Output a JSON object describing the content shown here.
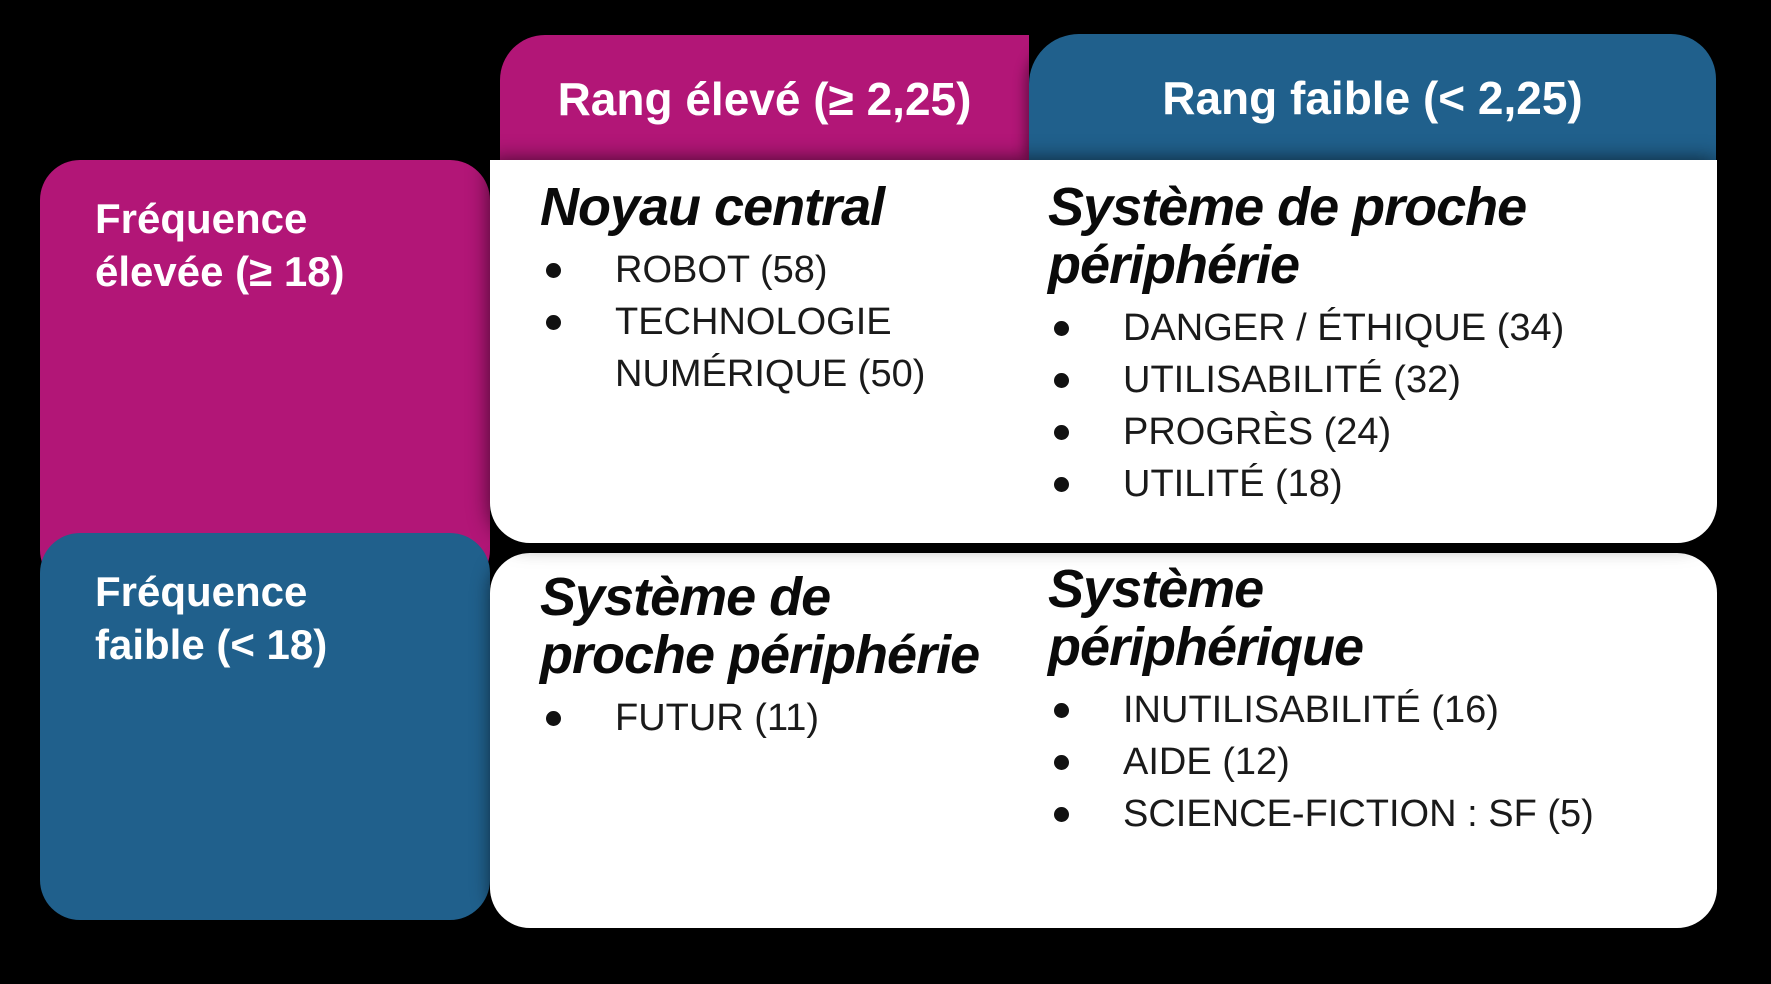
{
  "colors": {
    "magenta": "#B21677",
    "blue": "#20608C",
    "background": "#000000",
    "panel": "#FFFFFF",
    "header_text": "#FFFFFF",
    "body_text": "#1A1A1A"
  },
  "column_headers": [
    {
      "label": "Rang élevé (≥ 2,25)"
    },
    {
      "label": "Rang faible (< 2,25)"
    }
  ],
  "row_headers": [
    {
      "line1": "Fréquence",
      "line2": "élevée (≥ 18)"
    },
    {
      "line1": "Fréquence",
      "line2": "faible (< 18)"
    }
  ],
  "quadrants": [
    {
      "title": "Noyau central",
      "title_lines": [
        "Noyau central"
      ],
      "items": [
        "ROBOT (58)",
        "TECHNOLOGIE NUMÉRIQUE (50)"
      ]
    },
    {
      "title": "Système de proche périphérie",
      "title_lines": [
        "Système de proche",
        "périphérie"
      ],
      "items": [
        "DANGER / ÉTHIQUE (34)",
        "UTILISABILITÉ (32)",
        "PROGRÈS (24)",
        "UTILITÉ (18)"
      ]
    },
    {
      "title": "Système de proche périphérie",
      "title_lines": [
        "Système de",
        "proche périphérie"
      ],
      "items": [
        "FUTUR (11)"
      ]
    },
    {
      "title": "Système périphérique",
      "title_lines": [
        "Système",
        "périphérique"
      ],
      "items": [
        "INUTILISABILITÉ (16)",
        "AIDE (12)",
        "SCIENCE-FICTION : SF (5)"
      ]
    }
  ]
}
